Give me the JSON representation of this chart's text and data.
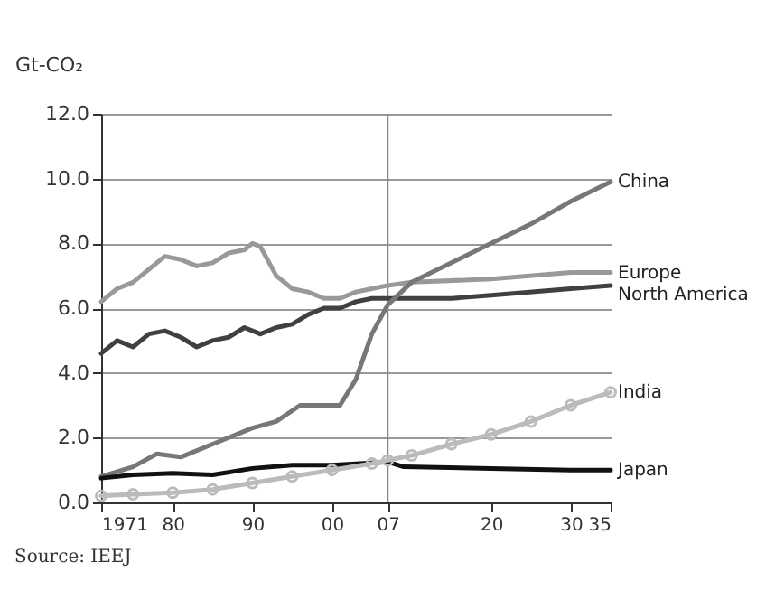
{
  "chart_data": {
    "type": "line",
    "ylabel": "Gt-CO₂",
    "annotations": [
      "Source: IEEJ"
    ],
    "xlim": [
      1971,
      2035
    ],
    "xticks": [
      {
        "value": 1971,
        "label": "1971"
      },
      {
        "value": 1980,
        "label": "80"
      },
      {
        "value": 1990,
        "label": "90"
      },
      {
        "value": 2000,
        "label": "00"
      },
      {
        "value": 2007,
        "label": "07"
      },
      {
        "value": 2020,
        "label": "20"
      },
      {
        "value": 2030,
        "label": "30"
      },
      {
        "value": 2035,
        "label": "35"
      }
    ],
    "ylim": [
      0,
      12
    ],
    "yticks": [
      {
        "value": 0,
        "label": "0.0"
      },
      {
        "value": 2,
        "label": "2.0"
      },
      {
        "value": 4,
        "label": "4.0"
      },
      {
        "value": 6,
        "label": "6.0"
      },
      {
        "value": 8,
        "label": "8.0"
      },
      {
        "value": 10,
        "label": "10.0"
      },
      {
        "value": 12,
        "label": "12.0"
      }
    ],
    "grid": "y",
    "legend": false,
    "line_style": "solid",
    "ref_lines": [
      {
        "axis": "x",
        "value": 2007,
        "color": "#888888"
      }
    ],
    "series": [
      {
        "name": "Europe",
        "color": "#999999",
        "marker": "none",
        "x": [
          1971,
          1973,
          1975,
          1977,
          1979,
          1981,
          1983,
          1985,
          1987,
          1989,
          1990,
          1991,
          1993,
          1995,
          1997,
          1999,
          2001,
          2003,
          2005,
          2007,
          2010,
          2020,
          2030,
          2035
        ],
        "values": [
          6.2,
          6.6,
          6.8,
          7.2,
          7.6,
          7.5,
          7.3,
          7.4,
          7.7,
          7.8,
          8.0,
          7.9,
          7.0,
          6.6,
          6.5,
          6.3,
          6.3,
          6.5,
          6.6,
          6.7,
          6.8,
          6.9,
          7.1,
          7.1
        ]
      },
      {
        "name": "North America",
        "color": "#404040",
        "marker": "none",
        "x": [
          1971,
          1973,
          1975,
          1977,
          1979,
          1981,
          1983,
          1985,
          1987,
          1989,
          1991,
          1993,
          1995,
          1997,
          1999,
          2001,
          2003,
          2005,
          2007,
          2015,
          2020,
          2030,
          2035
        ],
        "values": [
          4.6,
          5.0,
          4.8,
          5.2,
          5.3,
          5.1,
          4.8,
          5.0,
          5.1,
          5.4,
          5.2,
          5.4,
          5.5,
          5.8,
          6.0,
          6.0,
          6.2,
          6.3,
          6.3,
          6.3,
          6.4,
          6.6,
          6.7
        ]
      },
      {
        "name": "China",
        "color": "#777777",
        "marker": "none",
        "x": [
          1971,
          1975,
          1978,
          1981,
          1985,
          1990,
          1993,
          1996,
          1999,
          2001,
          2003,
          2005,
          2007,
          2010,
          2015,
          2020,
          2025,
          2030,
          2035
        ],
        "values": [
          0.8,
          1.1,
          1.5,
          1.4,
          1.8,
          2.3,
          2.5,
          3.0,
          3.0,
          3.0,
          3.8,
          5.2,
          6.1,
          6.8,
          7.4,
          8.0,
          8.6,
          9.3,
          9.9
        ]
      },
      {
        "name": "Japan",
        "color": "#111111",
        "marker": "none",
        "x": [
          1971,
          1975,
          1980,
          1985,
          1990,
          1995,
          2000,
          2007,
          2009,
          2020,
          2030,
          2035
        ],
        "values": [
          0.75,
          0.85,
          0.9,
          0.85,
          1.05,
          1.15,
          1.15,
          1.25,
          1.1,
          1.05,
          1.0,
          1.0
        ]
      },
      {
        "name": "India",
        "color": "#bbbbbb",
        "marker": "circle",
        "x": [
          1971,
          1975,
          1980,
          1985,
          1990,
          1995,
          2000,
          2005,
          2007,
          2010,
          2015,
          2020,
          2025,
          2030,
          2035
        ],
        "values": [
          0.2,
          0.25,
          0.3,
          0.4,
          0.6,
          0.8,
          1.0,
          1.2,
          1.3,
          1.45,
          1.8,
          2.1,
          2.5,
          3.0,
          3.4
        ]
      }
    ]
  }
}
